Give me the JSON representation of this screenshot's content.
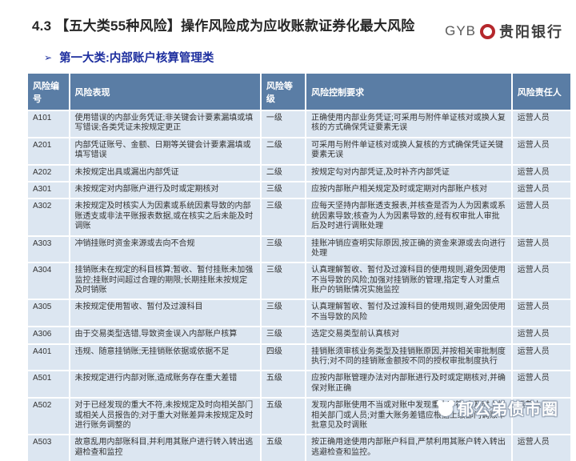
{
  "header": {
    "title": "4.3 【五大类55种风险】操作风险成为应收账款证券化最大风险",
    "logo": {
      "abbr": "GYB",
      "name": "贵阳银行",
      "coin_color": "#b5282c"
    }
  },
  "subtitle": {
    "bullet": "➢",
    "text": "第一大类:内部账户核算管理类"
  },
  "table": {
    "columns": [
      "风险编号",
      "风险表现",
      "风险等级",
      "风险控制要求",
      "风险责任人"
    ],
    "rows": [
      {
        "id": "A101",
        "manifestation": "使用错误的内部业务凭证;非关键会计要素漏填或填写错误;各类凭证未按规定更正",
        "level": "一级",
        "control": "正确使用内部业务凭证;可采用与附件单证核对或换人复核的方式确保凭证要素无误",
        "owner": "运营人员"
      },
      {
        "id": "A201",
        "manifestation": "内部凭证账号、金额、日期等关键会计要素漏填或填写错误",
        "level": "二级",
        "control": "可采用与附件单证核对或换人复核的方式确保凭证关键要素无误",
        "owner": "运营人员"
      },
      {
        "id": "A202",
        "manifestation": "未按规定出具或漏出内部凭证",
        "level": "二级",
        "control": "按规定勾对内部凭证,及时补齐内部凭证",
        "owner": "运营人员"
      },
      {
        "id": "A301",
        "manifestation": "未按规定对内部账户进行及时或定期核对",
        "level": "三级",
        "control": "应按内部账户相关规定及时或定期对内部账户核对",
        "owner": "运营人员"
      },
      {
        "id": "A302",
        "manifestation": "未按规定及时核实人为因素或系统因素导致的内部账透支或非法平账报表数据,或在核实之后未能及时调账",
        "level": "三级",
        "control": "应每天坚持内部账透支报表,并核查是否为人为因素或系统因素导致;核查为人为因素导致的,经有权审批人审批后及时进行调账处理",
        "owner": "运营人员"
      },
      {
        "id": "A303",
        "manifestation": "冲销挂账时资金来源或去向不合规",
        "level": "三级",
        "control": "挂账冲销应查明实际原因,按正确的资金来源或去向进行处理",
        "owner": "运营人员"
      },
      {
        "id": "A304",
        "manifestation": "挂销账未在规定的科目核算;暂收、暂付挂账未加强监控;挂账时间超过合理的期限;长期挂账未按规定及时销账",
        "level": "三级",
        "control": "认真理解暂收、暂付及过渡科目的使用规则,避免因使用不当导致的风险;加强对挂销账的管理,指定专人对重点账户的销账情况实施监控",
        "owner": "运营人员"
      },
      {
        "id": "A305",
        "manifestation": "未按规定使用暂收、暂付及过渡科目",
        "level": "三级",
        "control": "认真理解暂收、暂付及过渡科目的使用规则,避免因使用不当导致的风险",
        "owner": "运营人员"
      },
      {
        "id": "A306",
        "manifestation": "由于交易类型选错,导致资金误入内部账户核算",
        "level": "三级",
        "control": "选定交易类型前认真核对",
        "owner": "运营人员"
      },
      {
        "id": "A401",
        "manifestation": "违规、随意挂销账;无挂销账依据或依据不足",
        "level": "四级",
        "control": "挂销账须审核业务类型及挂销账原因,并按相关审批制度执行;对不同的挂销账金额按不同的授权审批制度执行",
        "owner": "运营人员"
      },
      {
        "id": "A501",
        "manifestation": "未按规定进行内部对账,造成账务存在重大差错",
        "level": "五级",
        "control": "应按内部账管理办法对内部账进行及时或定期核对,并确保对账正确",
        "owner": "运营人员"
      },
      {
        "id": "A502",
        "manifestation": "对于已经发现的重大不符,未按规定及时向相关部门或相关人员报告的;对于重大对账差异未按规定及时进行账务调整的",
        "level": "五级",
        "control": "发现内部账使用不当或对账中发现重大不符,应及时上报相关部门或人员;对重大账务差错应根据上级部门调账审批意见及时调账",
        "owner": "运营人员"
      },
      {
        "id": "A503",
        "manifestation": "故意乱用内部账科目,并利用其账户进行转入转出逃避检查和监控",
        "level": "五级",
        "control": "按正确用途使用内部账户科目,严禁利用其账户转入转出逃避检查和监控。",
        "owner": "运营人员"
      }
    ]
  },
  "watermark": {
    "text": "郁公弟债市圈"
  },
  "colors": {
    "header_bg": "#5a7da5",
    "row_bg": "#dce6f1",
    "subtitle_blue": "#1e2f9f",
    "logo_red": "#b5282c",
    "title_text": "#262626"
  }
}
